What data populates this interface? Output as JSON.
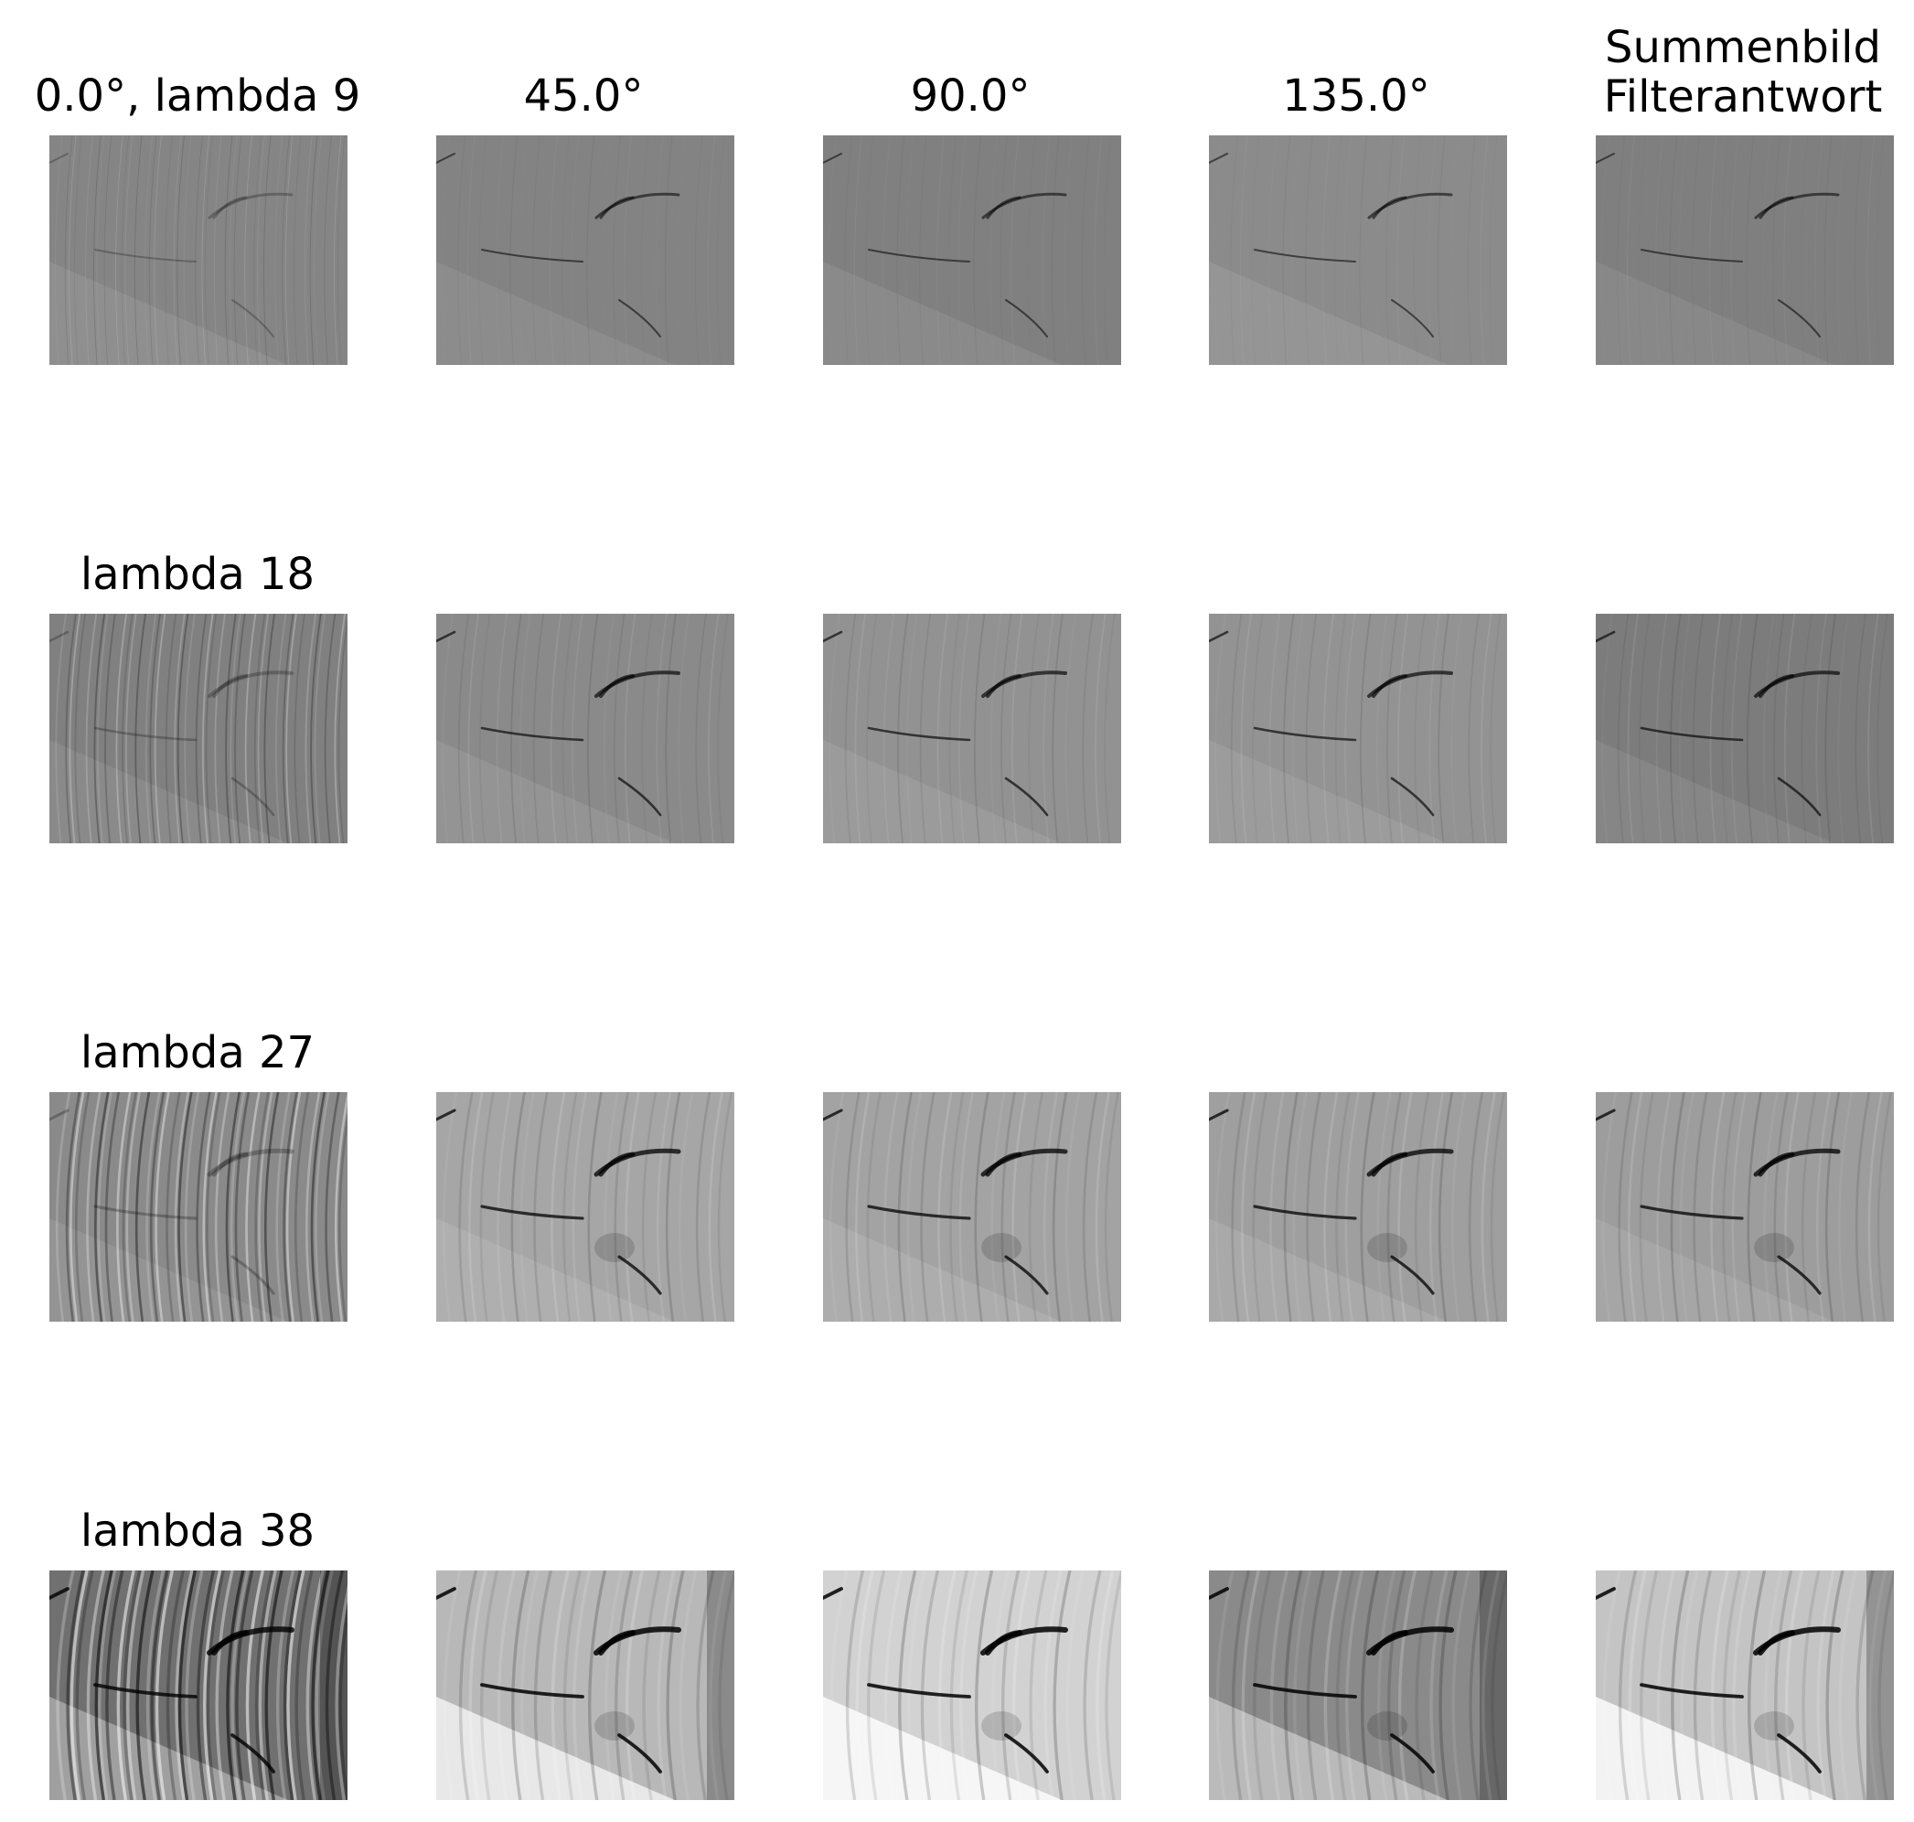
{
  "figure": {
    "columns": [
      {
        "title": "0.0°, lambda 9"
      },
      {
        "title": "45.0°"
      },
      {
        "title": "90.0°"
      },
      {
        "title": "135.0°"
      },
      {
        "title": "Summenbild\nFilterantwort",
        "title_line1": "Summenbild",
        "title_line2": "Filterantwort"
      }
    ],
    "rows": [
      {
        "label": "0.0°, lambda 9",
        "base": [
          "#858585",
          "#838383",
          "#808080",
          "#8b8b8b",
          "#7f7f7f"
        ]
      },
      {
        "label": "lambda 18",
        "base": [
          "#808080",
          "#8a8a8a",
          "#929292",
          "#939393",
          "#7c7c7c"
        ]
      },
      {
        "label": "lambda 27",
        "base": [
          "#8a8a8a",
          "#a6a6a6",
          "#a3a3a3",
          "#9f9f9f",
          "#9d9d9d"
        ]
      },
      {
        "label": "lambda 38",
        "base": [
          "#707070",
          "#b8b8b8",
          "#d2d2d2",
          "#8a8a8a",
          "#c4c4c4"
        ]
      }
    ],
    "colors": {
      "background": "#ffffff",
      "text": "#000000"
    }
  }
}
